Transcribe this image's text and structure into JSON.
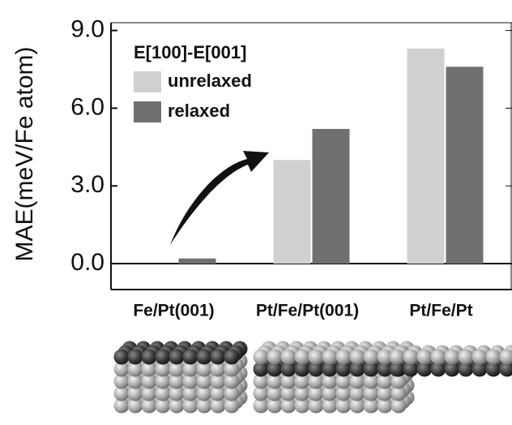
{
  "chart_data": {
    "type": "bar",
    "y_label": "MAE(meV/Fe atom)",
    "legend_title": "E[100]-E[001]",
    "categories": [
      "Fe/Pt(001)",
      "Pt/Fe/Pt(001)",
      "Pt/Fe/Pt"
    ],
    "series": [
      {
        "name": "unrelaxed",
        "color": "#d0d0d0",
        "values": [
          0,
          4.0,
          8.3
        ]
      },
      {
        "name": "relaxed",
        "color": "#707070",
        "values": [
          0.2,
          5.2,
          7.6
        ]
      }
    ],
    "ylim": [
      -1.0,
      9.3
    ],
    "yticks": [
      {
        "value": 0,
        "label": "0.0"
      },
      {
        "value": 3,
        "label": "3.0"
      },
      {
        "value": 6,
        "label": "6.0"
      },
      {
        "value": 9,
        "label": "9.0"
      }
    ]
  }
}
